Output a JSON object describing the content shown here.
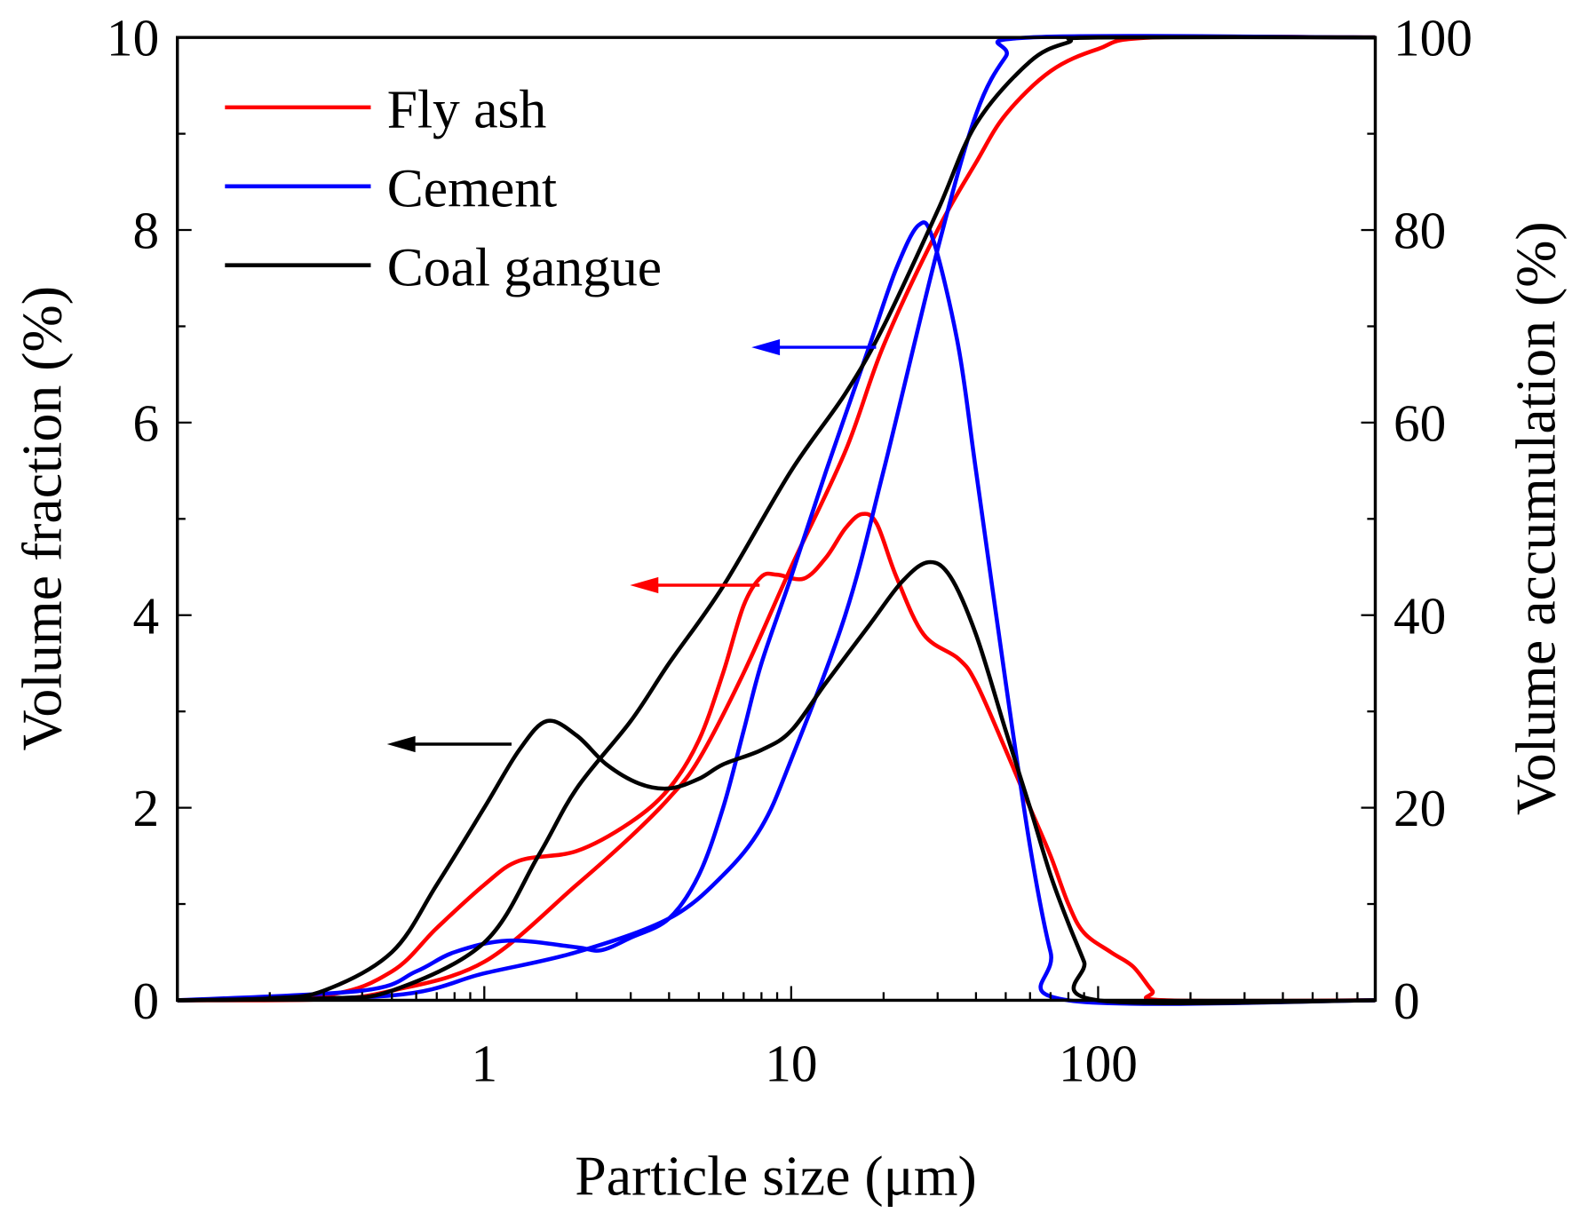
{
  "chart_data": {
    "type": "line",
    "title": "",
    "xlabel": "Particle size (μm)",
    "ylabel": "Volume fraction (%)",
    "y2label": "Volume accumulation (%)",
    "xscale": "log",
    "xlim": [
      0.1,
      800
    ],
    "ylim": [
      0,
      10
    ],
    "y2lim": [
      0,
      100
    ],
    "xticks": [
      {
        "v": 1,
        "label": "1"
      },
      {
        "v": 10,
        "label": "10"
      },
      {
        "v": 100,
        "label": "100"
      }
    ],
    "yticks": [
      "0",
      "2",
      "4",
      "6",
      "8",
      "10"
    ],
    "y2ticks": [
      "0",
      "20",
      "40",
      "60",
      "80",
      "100"
    ],
    "legend_position": "top-left",
    "series": [
      {
        "name": "Fly ash",
        "color": "#ff0000",
        "fraction": [
          [
            0.1,
            0
          ],
          [
            0.3,
            0.05
          ],
          [
            0.5,
            0.3
          ],
          [
            0.7,
            0.75
          ],
          [
            1,
            1.2
          ],
          [
            1.3,
            1.45
          ],
          [
            2,
            1.55
          ],
          [
            3,
            1.85
          ],
          [
            4,
            2.2
          ],
          [
            5,
            2.7
          ],
          [
            6,
            3.4
          ],
          [
            7,
            4.1
          ],
          [
            8,
            4.4
          ],
          [
            9,
            4.42
          ],
          [
            11,
            4.38
          ],
          [
            13,
            4.6
          ],
          [
            15,
            4.9
          ],
          [
            17,
            5.05
          ],
          [
            19,
            4.95
          ],
          [
            22,
            4.4
          ],
          [
            27,
            3.8
          ],
          [
            35,
            3.55
          ],
          [
            40,
            3.3
          ],
          [
            50,
            2.6
          ],
          [
            60,
            2.0
          ],
          [
            70,
            1.5
          ],
          [
            80,
            1.0
          ],
          [
            90,
            0.7
          ],
          [
            110,
            0.5
          ],
          [
            130,
            0.35
          ],
          [
            150,
            0.1
          ],
          [
            165,
            0
          ],
          [
            800,
            0
          ]
        ],
        "cumulative": [
          [
            0.1,
            0
          ],
          [
            0.3,
            0.1
          ],
          [
            0.5,
            1
          ],
          [
            1,
            4
          ],
          [
            2,
            12
          ],
          [
            3,
            17
          ],
          [
            4,
            21
          ],
          [
            5,
            25
          ],
          [
            7,
            34
          ],
          [
            10,
            45
          ],
          [
            15,
            57
          ],
          [
            20,
            68
          ],
          [
            30,
            80
          ],
          [
            40,
            87
          ],
          [
            50,
            92
          ],
          [
            70,
            96.5
          ],
          [
            100,
            98.8
          ],
          [
            150,
            100
          ],
          [
            800,
            100
          ]
        ]
      },
      {
        "name": "Cement",
        "color": "#0000ff",
        "fraction": [
          [
            0.1,
            0
          ],
          [
            0.4,
            0.1
          ],
          [
            0.6,
            0.3
          ],
          [
            0.8,
            0.5
          ],
          [
            1.2,
            0.62
          ],
          [
            2,
            0.55
          ],
          [
            2.4,
            0.52
          ],
          [
            3,
            0.65
          ],
          [
            4,
            0.85
          ],
          [
            5,
            1.3
          ],
          [
            6,
            2.0
          ],
          [
            7,
            2.8
          ],
          [
            8,
            3.5
          ],
          [
            10,
            4.4
          ],
          [
            13,
            5.5
          ],
          [
            18,
            6.8
          ],
          [
            22,
            7.6
          ],
          [
            26,
            8.05
          ],
          [
            29,
            7.9
          ],
          [
            35,
            6.8
          ],
          [
            40,
            5.5
          ],
          [
            50,
            3.3
          ],
          [
            60,
            1.6
          ],
          [
            70,
            0.5
          ],
          [
            80,
            0
          ],
          [
            800,
            0
          ]
        ],
        "cumulative": [
          [
            0.1,
            0
          ],
          [
            0.5,
            0.5
          ],
          [
            1,
            2.8
          ],
          [
            2,
            5
          ],
          [
            4,
            8.5
          ],
          [
            6,
            13
          ],
          [
            8,
            18
          ],
          [
            10,
            25
          ],
          [
            15,
            40
          ],
          [
            20,
            55
          ],
          [
            30,
            78
          ],
          [
            40,
            92
          ],
          [
            50,
            98
          ],
          [
            60,
            100
          ],
          [
            800,
            100
          ]
        ]
      },
      {
        "name": "Coal gangue",
        "color": "#000000",
        "fraction": [
          [
            0.1,
            0
          ],
          [
            0.2,
            0.02
          ],
          [
            0.3,
            0.1
          ],
          [
            0.5,
            0.5
          ],
          [
            0.7,
            1.2
          ],
          [
            1,
            2.0
          ],
          [
            1.3,
            2.6
          ],
          [
            1.6,
            2.9
          ],
          [
            2,
            2.75
          ],
          [
            2.5,
            2.45
          ],
          [
            3.2,
            2.25
          ],
          [
            4,
            2.2
          ],
          [
            5,
            2.3
          ],
          [
            6,
            2.45
          ],
          [
            8,
            2.6
          ],
          [
            10,
            2.8
          ],
          [
            13,
            3.3
          ],
          [
            18,
            3.9
          ],
          [
            23,
            4.35
          ],
          [
            28,
            4.55
          ],
          [
            33,
            4.4
          ],
          [
            40,
            3.8
          ],
          [
            50,
            2.8
          ],
          [
            60,
            2.0
          ],
          [
            70,
            1.3
          ],
          [
            80,
            0.8
          ],
          [
            90,
            0.4
          ],
          [
            100,
            0
          ],
          [
            800,
            0
          ]
        ],
        "cumulative": [
          [
            0.1,
            0
          ],
          [
            0.3,
            0.2
          ],
          [
            0.5,
            1
          ],
          [
            1,
            6
          ],
          [
            1.5,
            15
          ],
          [
            2,
            22
          ],
          [
            3,
            29
          ],
          [
            4,
            35
          ],
          [
            6,
            43
          ],
          [
            10,
            55
          ],
          [
            15,
            63
          ],
          [
            20,
            70
          ],
          [
            30,
            82
          ],
          [
            40,
            91
          ],
          [
            60,
            97.5
          ],
          [
            80,
            99.5
          ],
          [
            100,
            100
          ],
          [
            800,
            100
          ]
        ]
      }
    ]
  }
}
